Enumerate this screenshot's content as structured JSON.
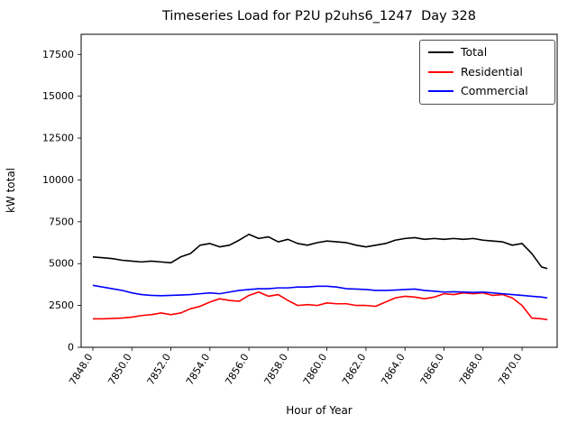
{
  "title": "Timeseries Load for P2U p2uhs6_1247  Day 328",
  "chart_data": {
    "type": "line",
    "title": "Timeseries Load for P2U p2uhs6_1247  Day 328",
    "xlabel": "Hour of Year",
    "ylabel": "kW total",
    "xlim": [
      7847.4,
      7871.8
    ],
    "ylim": [
      0,
      18700
    ],
    "xticks": [
      7848,
      7850,
      7852,
      7854,
      7856,
      7858,
      7860,
      7862,
      7864,
      7866,
      7868,
      7870
    ],
    "yticks": [
      0,
      2500,
      5000,
      7500,
      10000,
      12500,
      15000,
      17500
    ],
    "grid": false,
    "legend_position": "upper right",
    "x": [
      7848.0,
      7848.5,
      7849.0,
      7849.5,
      7850.0,
      7850.5,
      7851.0,
      7851.5,
      7852.0,
      7852.5,
      7853.0,
      7853.5,
      7854.0,
      7854.5,
      7855.0,
      7855.5,
      7856.0,
      7856.5,
      7857.0,
      7857.5,
      7858.0,
      7858.5,
      7859.0,
      7859.5,
      7860.0,
      7860.5,
      7861.0,
      7861.5,
      7862.0,
      7862.5,
      7863.0,
      7863.5,
      7864.0,
      7864.5,
      7865.0,
      7865.5,
      7866.0,
      7866.5,
      7867.0,
      7867.5,
      7868.0,
      7868.5,
      7869.0,
      7869.5,
      7870.0,
      7870.5,
      7871.0,
      7871.3
    ],
    "series": [
      {
        "name": "Total",
        "color": "#000000",
        "values": [
          5400,
          5350,
          5300,
          5200,
          5150,
          5100,
          5150,
          5100,
          5050,
          5400,
          5600,
          6100,
          6200,
          6000,
          6100,
          6400,
          6750,
          6500,
          6600,
          6300,
          6450,
          6200,
          6100,
          6250,
          6350,
          6300,
          6250,
          6100,
          6000,
          6100,
          6200,
          6400,
          6500,
          6550,
          6450,
          6500,
          6450,
          6500,
          6450,
          6500,
          6400,
          6350,
          6300,
          6100,
          6200,
          5600,
          4800,
          4700
        ]
      },
      {
        "name": "Residential",
        "color": "#ff0000",
        "values": [
          1700,
          1700,
          1720,
          1750,
          1800,
          1900,
          1950,
          2050,
          1950,
          2050,
          2300,
          2450,
          2700,
          2900,
          2800,
          2750,
          3100,
          3300,
          3050,
          3150,
          2800,
          2500,
          2550,
          2500,
          2650,
          2600,
          2600,
          2500,
          2500,
          2450,
          2700,
          2950,
          3050,
          3000,
          2900,
          3000,
          3200,
          3150,
          3250,
          3200,
          3250,
          3100,
          3150,
          2950,
          2500,
          1750,
          1700,
          1650
        ]
      },
      {
        "name": "Commercial",
        "color": "#0000ff",
        "values": [
          3700,
          3600,
          3500,
          3400,
          3250,
          3150,
          3100,
          3080,
          3100,
          3120,
          3150,
          3200,
          3250,
          3200,
          3300,
          3400,
          3450,
          3500,
          3500,
          3550,
          3550,
          3600,
          3600,
          3650,
          3650,
          3600,
          3500,
          3480,
          3450,
          3400,
          3400,
          3420,
          3450,
          3480,
          3400,
          3350,
          3300,
          3320,
          3300,
          3280,
          3300,
          3250,
          3200,
          3150,
          3100,
          3050,
          3000,
          2950
        ]
      }
    ]
  }
}
